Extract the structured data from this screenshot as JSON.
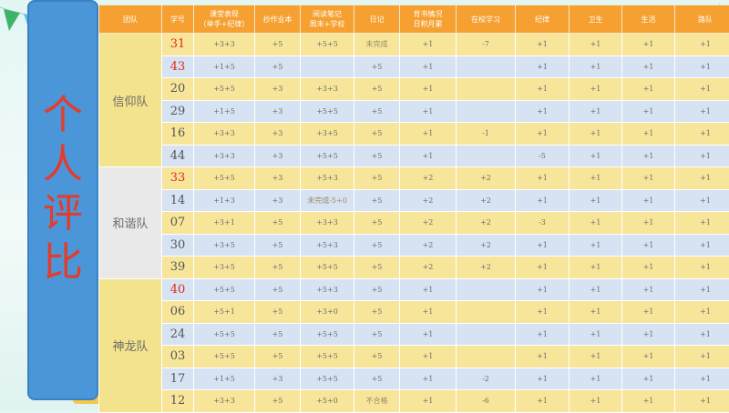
{
  "title_chars": [
    "个",
    "人",
    "评",
    "比"
  ],
  "headers": [
    "团队",
    "学号",
    "课堂表现\n（举手+纪律）",
    "抄作业本",
    "阅读笔记\n周末+学校",
    "日记",
    "背书情况\n日积月累",
    "在校学习",
    "纪律",
    "卫生",
    "生活",
    "路队"
  ],
  "teams": [
    {
      "name": "信仰队",
      "color": "yellow",
      "rows": [
        {
          "id": "31",
          "red": true,
          "cells": [
            "+3+3",
            "+5",
            "+5+5",
            "未完成",
            "+1",
            "-7",
            "+1",
            "+1",
            "+1",
            "+1"
          ]
        },
        {
          "id": "43",
          "red": true,
          "cells": [
            "+1+5",
            "+5",
            "",
            "+5",
            "+1",
            "",
            "+1",
            "+1",
            "+1",
            "+1"
          ]
        },
        {
          "id": "20",
          "red": false,
          "cells": [
            "+5+5",
            "+3",
            "+3+3",
            "+5",
            "+1",
            "",
            "+1",
            "+1",
            "+1",
            "+1"
          ]
        },
        {
          "id": "29",
          "red": false,
          "cells": [
            "+1+5",
            "+3",
            "+5+5",
            "+5",
            "+1",
            "",
            "+1",
            "+1",
            "+1",
            "+1"
          ]
        },
        {
          "id": "16",
          "red": false,
          "cells": [
            "+3+3",
            "+3",
            "+3+5",
            "+5",
            "+1",
            "-1",
            "+1",
            "+1",
            "+1",
            "+1"
          ]
        },
        {
          "id": "44",
          "red": false,
          "cells": [
            "+3+3",
            "+3",
            "+5+5",
            "+5",
            "+1",
            "",
            "-5",
            "+1",
            "+1",
            "+1"
          ]
        }
      ]
    },
    {
      "name": "和谐队",
      "color": "gray",
      "rows": [
        {
          "id": "33",
          "red": true,
          "cells": [
            "+5+5",
            "+3",
            "+5+3",
            "+5",
            "+2",
            "+2",
            "+1",
            "+1",
            "+1",
            "+1"
          ]
        },
        {
          "id": "14",
          "red": false,
          "cells": [
            "+1+3",
            "+3",
            "未完成-5+0",
            "+5",
            "+2",
            "+2",
            "+1",
            "+1",
            "+1",
            "+1"
          ]
        },
        {
          "id": "07",
          "red": false,
          "cells": [
            "+3+1",
            "+5",
            "+3+3",
            "+5",
            "+2",
            "+2",
            "-3",
            "+1",
            "+1",
            "+1"
          ]
        },
        {
          "id": "30",
          "red": false,
          "cells": [
            "+3+5",
            "+5",
            "+5+3",
            "+5",
            "+2",
            "+2",
            "+1",
            "+1",
            "+1",
            "+1"
          ]
        },
        {
          "id": "39",
          "red": false,
          "cells": [
            "+3+5",
            "+5",
            "+5+5",
            "+5",
            "+2",
            "+2",
            "+1",
            "+1",
            "+1",
            "+1"
          ]
        }
      ]
    },
    {
      "name": "神龙队",
      "color": "yellow",
      "rows": [
        {
          "id": "40",
          "red": true,
          "cells": [
            "+5+5",
            "+5",
            "+5+3",
            "+5",
            "+1",
            "",
            "+1",
            "+1",
            "+1",
            "+1"
          ]
        },
        {
          "id": "06",
          "red": false,
          "cells": [
            "+5+1",
            "+5",
            "+3+0",
            "+5",
            "+1",
            "",
            "+1",
            "+1",
            "+1",
            "+1"
          ]
        },
        {
          "id": "24",
          "red": false,
          "cells": [
            "+5+5",
            "+5",
            "+5+5",
            "+5",
            "+1",
            "",
            "+1",
            "+1",
            "+1",
            "+1"
          ]
        },
        {
          "id": "03",
          "red": false,
          "cells": [
            "+5+5",
            "+5",
            "+5+5",
            "+5",
            "+1",
            "",
            "+1",
            "+1",
            "+1",
            "+1"
          ]
        },
        {
          "id": "17",
          "red": false,
          "cells": [
            "+1+5",
            "+3",
            "+5+5",
            "+5",
            "+1",
            "-2",
            "+1",
            "+1",
            "+1",
            "+1"
          ]
        },
        {
          "id": "12",
          "red": false,
          "cells": [
            "+3+3",
            "+5",
            "+5+0",
            "不合格",
            "+1",
            "-6",
            "+1",
            "+1",
            "+1",
            "+1"
          ]
        }
      ]
    }
  ],
  "colors": {
    "header": "#f5a030",
    "row_yellow": "#f7e69a",
    "row_blue": "#d7e3f2",
    "title_panel": "#4a96d8",
    "title_text": "#e53b2c",
    "highlight_id": "#e02a1a"
  },
  "decorations": [
    "bunting-flags",
    "hot-air-balloon",
    "heart-with-children"
  ]
}
